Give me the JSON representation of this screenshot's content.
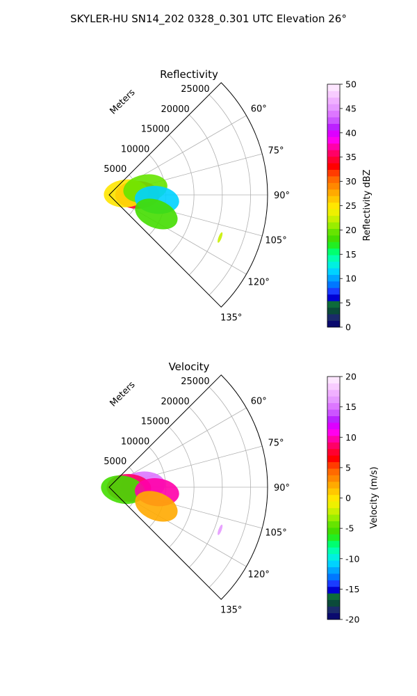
{
  "suptitle": "SKYLER-HU  SN14_202  0328_0.301 UTC Elevation 26°",
  "chart_data": [
    {
      "type": "polar-sector",
      "title": "Reflectivity",
      "radial_label": "Meters",
      "radial_ticks": [
        5000,
        10000,
        15000,
        20000,
        25000
      ],
      "r_max": 28000,
      "theta_range_deg": [
        45,
        135
      ],
      "theta_ticks_deg": [
        60,
        75,
        90,
        105,
        120,
        135
      ],
      "grid": true,
      "colorbar": {
        "label": "Reflectivity dBZ",
        "range": [
          0,
          50
        ],
        "ticks": [
          0,
          5,
          10,
          15,
          20,
          25,
          30,
          35,
          40,
          45,
          50
        ],
        "colors": [
          "#0a0a6e",
          "#1b2a6b",
          "#0b4a3a",
          "#0d6b3a",
          "#0000d2",
          "#1a3cff",
          "#0077ff",
          "#00a5ff",
          "#00d2ff",
          "#00f0e0",
          "#00ffb0",
          "#00ff70",
          "#22ee22",
          "#44dd00",
          "#66e400",
          "#99ee00",
          "#c8f000",
          "#eef000",
          "#ffe600",
          "#ffc800",
          "#ffaa00",
          "#ff8800",
          "#ff6a00",
          "#ff3c00",
          "#ff0000",
          "#ff0030",
          "#ff0066",
          "#ff00aa",
          "#ff00ee",
          "#dd00ff",
          "#bb22ff",
          "#cc55ff",
          "#dd77ff",
          "#e699ff",
          "#f0b0ff",
          "#f8ccff",
          "#fde6ff"
        ]
      },
      "echoes": [
        {
          "r": 5000,
          "theta_deg": 90,
          "value": 35
        },
        {
          "r": 3000,
          "theta_deg": 85,
          "value": 25
        },
        {
          "r": 6500,
          "theta_deg": 80,
          "value": 20
        },
        {
          "r": 8500,
          "theta_deg": 96,
          "value": 12
        },
        {
          "r": 9000,
          "theta_deg": 112,
          "value": 18
        },
        {
          "r": 21000,
          "theta_deg": 111,
          "value": 22
        }
      ]
    },
    {
      "type": "polar-sector",
      "title": "Velocity",
      "radial_label": "Meters",
      "radial_ticks": [
        5000,
        10000,
        15000,
        20000,
        25000
      ],
      "r_max": 28000,
      "theta_range_deg": [
        45,
        135
      ],
      "theta_ticks_deg": [
        60,
        75,
        90,
        105,
        120,
        135
      ],
      "grid": true,
      "colorbar": {
        "label": "Velocity (m/s)",
        "range": [
          -20,
          20
        ],
        "ticks": [
          -20,
          -15,
          -10,
          -5,
          0,
          5,
          10,
          15,
          20
        ],
        "colors": [
          "#0a0a6e",
          "#1b2a6b",
          "#0b4a3a",
          "#0d6b3a",
          "#0000d2",
          "#1a3cff",
          "#0077ff",
          "#00a5ff",
          "#00d2ff",
          "#00f0e0",
          "#00ffb0",
          "#00ff70",
          "#22ee22",
          "#44dd00",
          "#66e400",
          "#99ee00",
          "#c8f000",
          "#eef000",
          "#ffe600",
          "#ffc800",
          "#ffaa00",
          "#ff8800",
          "#ff6a00",
          "#ff3c00",
          "#ff0000",
          "#ff0030",
          "#ff0066",
          "#ff00aa",
          "#ff00ee",
          "#dd00ff",
          "#bb22ff",
          "#cc55ff",
          "#dd77ff",
          "#e699ff",
          "#f0b0ff",
          "#f8ccff",
          "#fde6ff"
        ]
      },
      "echoes": [
        {
          "r": 6000,
          "theta_deg": 87,
          "value": 15
        },
        {
          "r": 3500,
          "theta_deg": 92,
          "value": 9
        },
        {
          "r": 2500,
          "theta_deg": 100,
          "value": -5
        },
        {
          "r": 8500,
          "theta_deg": 96,
          "value": 10
        },
        {
          "r": 9000,
          "theta_deg": 112,
          "value": 2
        },
        {
          "r": 21000,
          "theta_deg": 111,
          "value": 16
        }
      ]
    }
  ]
}
